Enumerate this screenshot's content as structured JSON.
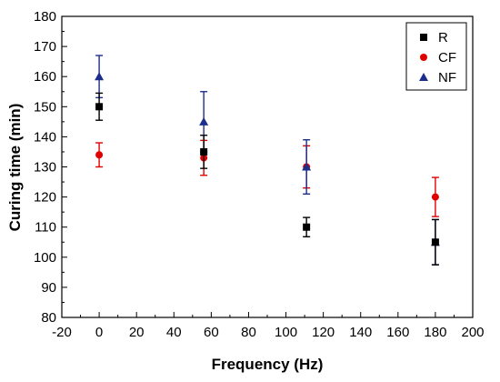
{
  "chart_data": {
    "type": "scatter",
    "title": "",
    "xlabel": "Frequency (Hz)",
    "ylabel": "Curing time (min)",
    "xlim": [
      -20,
      200
    ],
    "ylim": [
      80,
      180
    ],
    "xticks": [
      -20,
      0,
      20,
      40,
      60,
      80,
      100,
      120,
      140,
      160,
      180,
      200
    ],
    "yticks": [
      80,
      90,
      100,
      110,
      120,
      130,
      140,
      150,
      160,
      170,
      180
    ],
    "grid": false,
    "legend_position": "top-right",
    "error_bars": true,
    "series": [
      {
        "name": "R",
        "marker": "square",
        "color": "#000000",
        "x": [
          0,
          56,
          111,
          180
        ],
        "y": [
          150,
          135,
          110,
          105
        ],
        "error": [
          4.5,
          5.5,
          3.2,
          7.5
        ]
      },
      {
        "name": "CF",
        "marker": "circle",
        "color": "#e00000",
        "x": [
          0,
          56,
          111,
          180
        ],
        "y": [
          134,
          133,
          130,
          120
        ],
        "error": [
          4,
          5.8,
          7,
          6.5
        ]
      },
      {
        "name": "NF",
        "marker": "triangle",
        "color": "#1c2e8c",
        "x": [
          0,
          56,
          111,
          180
        ],
        "y": [
          160,
          145,
          130,
          105
        ],
        "error": [
          7,
          10,
          9,
          7.5
        ]
      }
    ]
  }
}
